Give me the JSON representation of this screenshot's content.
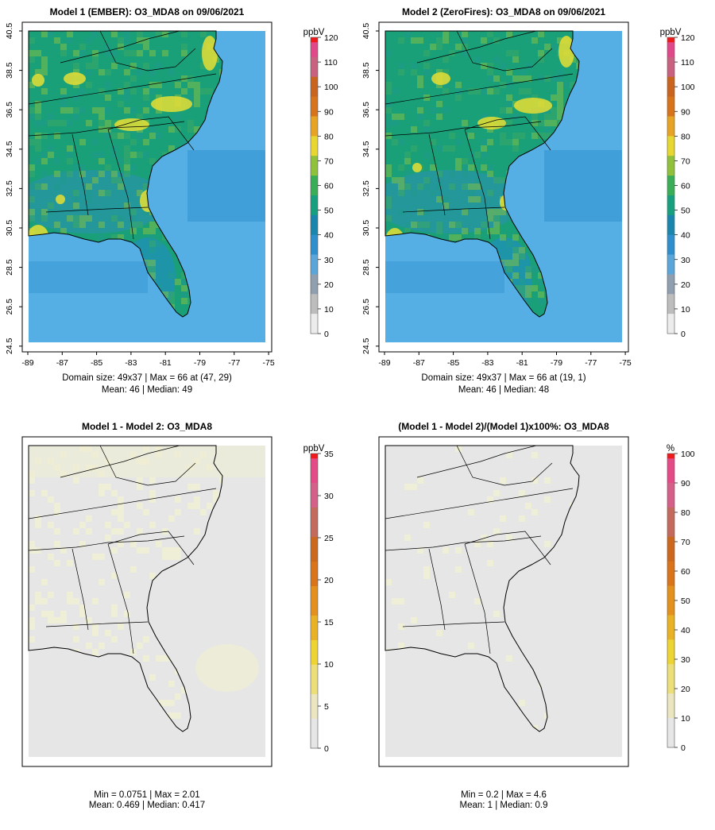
{
  "colors": {
    "box": "#000000",
    "ocean": "#55afe5",
    "land_low": "#1f8fb8",
    "land_mid": "#1aa079",
    "land_high": "#e6de34",
    "diff_bg": "#e6e6e6",
    "diff_pale": "#efeed4"
  },
  "panels": [
    {
      "id": "model1",
      "title": "Model 1 (EMBER): O3_MDA8 on 09/06/2021",
      "kind": "conc",
      "caption_lines": [
        "Domain size: 49x37 | Max = 66 at (47, 29)",
        "Mean: 46 |  Median: 49"
      ],
      "show_axes": true
    },
    {
      "id": "model2",
      "title": "Model 2 (ZeroFires): O3_MDA8 on 09/06/2021",
      "kind": "conc",
      "caption_lines": [
        "Domain size: 49x37 | Max = 66 at (19, 1)",
        "Mean: 46 |  Median: 48"
      ],
      "show_axes": true
    },
    {
      "id": "diff",
      "title": "Model 1 - Model 2: O3_MDA8",
      "kind": "diff",
      "caption_lines": [
        "Min = 0.0751 | Max = 2.01",
        "Mean: 0.469 |  Median: 0.417"
      ],
      "show_axes": false
    },
    {
      "id": "pctdiff",
      "title": "(Model 1 - Model 2)/(Model 1)x100%: O3_MDA8",
      "kind": "diff",
      "caption_lines": [
        "Min = 0.2 | Max = 4.6",
        "Mean: 1 |  Median: 0.9"
      ],
      "show_axes": false
    }
  ],
  "colorbars": [
    {
      "panel": "model1",
      "unit": "ppbV",
      "ticks": [
        0,
        10,
        20,
        30,
        40,
        50,
        60,
        70,
        80,
        90,
        100,
        110,
        120
      ],
      "min": 0,
      "max": 120,
      "colors": [
        "#ececec",
        "#bdbdbd",
        "#8f9fb0",
        "#5aa6da",
        "#2f8fcd",
        "#1a86ad",
        "#17a07f",
        "#3aae57",
        "#8fc13b",
        "#e8d631",
        "#e7a324",
        "#d7741b",
        "#c8641e",
        "#c96080",
        "#e0488a",
        "#f01a1a"
      ]
    },
    {
      "panel": "model2",
      "unit": "ppbV",
      "ticks": [
        0,
        10,
        20,
        30,
        40,
        50,
        60,
        70,
        80,
        90,
        100,
        110,
        120
      ],
      "min": 0,
      "max": 120,
      "colors": [
        "#ececec",
        "#bdbdbd",
        "#8f9fb0",
        "#5aa6da",
        "#2f8fcd",
        "#1a86ad",
        "#17a07f",
        "#3aae57",
        "#8fc13b",
        "#e8d631",
        "#e7a324",
        "#d7741b",
        "#c8641e",
        "#c96080",
        "#e0488a",
        "#f01a1a"
      ]
    },
    {
      "panel": "diff",
      "unit": "ppbV",
      "ticks": [
        0,
        5,
        10,
        15,
        20,
        25,
        30,
        35
      ],
      "min": 0,
      "max": 35,
      "colors": [
        "#e6e6e6",
        "#ebe6c0",
        "#ecdf7a",
        "#edd433",
        "#e9b225",
        "#e3901d",
        "#d9741a",
        "#cc671e",
        "#c46a5c",
        "#d46089",
        "#e44a86",
        "#f01a1a"
      ]
    },
    {
      "panel": "pctdiff",
      "unit": "%",
      "ticks": [
        0,
        10,
        20,
        30,
        40,
        50,
        60,
        70,
        80,
        90,
        100
      ],
      "min": 0,
      "max": 100,
      "colors": [
        "#e6e6e6",
        "#ebe6c0",
        "#ecdf7a",
        "#edd433",
        "#e9b225",
        "#e3901d",
        "#d9741a",
        "#cc671e",
        "#c46a5c",
        "#d46089",
        "#e44a86",
        "#f01a1a"
      ]
    }
  ],
  "axes": {
    "x_ticks": [
      "-89",
      "-87",
      "-85",
      "-83",
      "-81",
      "-79",
      "-77",
      "-75"
    ],
    "y_ticks": [
      "40.5",
      "38.5",
      "36.5",
      "34.5",
      "32.5",
      "30.5",
      "28.5",
      "26.5",
      "24.5"
    ]
  },
  "chart_data": [
    {
      "type": "heatmap",
      "title": "Model 1 (EMBER): O3_MDA8 on 09/06/2021",
      "units": "ppbV",
      "grid": [
        49,
        37
      ],
      "lon_range": [
        -89,
        -75
      ],
      "lat_range": [
        24.5,
        40.5
      ],
      "max": 66,
      "max_at": [
        47,
        29
      ],
      "mean": 46,
      "median": 49,
      "colorbar_range": [
        0,
        120
      ]
    },
    {
      "type": "heatmap",
      "title": "Model 2 (ZeroFires): O3_MDA8 on 09/06/2021",
      "units": "ppbV",
      "grid": [
        49,
        37
      ],
      "lon_range": [
        -89,
        -75
      ],
      "lat_range": [
        24.5,
        40.5
      ],
      "max": 66,
      "max_at": [
        19,
        1
      ],
      "mean": 46,
      "median": 48,
      "colorbar_range": [
        0,
        120
      ]
    },
    {
      "type": "heatmap",
      "title": "Model 1 - Model 2: O3_MDA8",
      "units": "ppbV",
      "min": 0.0751,
      "max": 2.01,
      "mean": 0.469,
      "median": 0.417,
      "colorbar_range": [
        0,
        35
      ]
    },
    {
      "type": "heatmap",
      "title": "(Model 1 - Model 2)/(Model 1)x100%: O3_MDA8",
      "units": "%",
      "min": 0.2,
      "max": 4.6,
      "mean": 1,
      "median": 0.9,
      "colorbar_range": [
        0,
        100
      ]
    }
  ]
}
